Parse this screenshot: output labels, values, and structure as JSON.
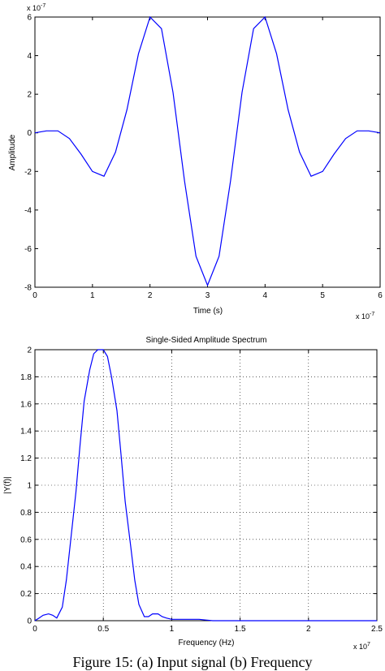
{
  "chart_data": [
    {
      "type": "line",
      "title": "",
      "xlabel": "Time (s)",
      "ylabel": "Amplitude",
      "x_exponent": "x 10",
      "x_exponent_power": "-7",
      "y_exponent": "x 10",
      "y_exponent_power": "-7",
      "xlim": [
        0,
        6
      ],
      "ylim": [
        -8,
        6
      ],
      "xticks": [
        "0",
        "1",
        "2",
        "3",
        "4",
        "5",
        "6"
      ],
      "yticks": [
        "-8",
        "-6",
        "-4",
        "-2",
        "0",
        "2",
        "4",
        "6"
      ],
      "grid": false,
      "line_color": "#0000ff",
      "series": [
        {
          "x": [
            0,
            0.2,
            0.4,
            0.6,
            0.8,
            1.0,
            1.2,
            1.4,
            1.6,
            1.8,
            2.0,
            2.2,
            2.4,
            2.6,
            2.8,
            3.0,
            3.2,
            3.4,
            3.6,
            3.8,
            4.0,
            4.2,
            4.4,
            4.6,
            4.8,
            5.0,
            5.2,
            5.4,
            5.6,
            5.8,
            6.0
          ],
          "values": [
            0,
            0.1,
            0.1,
            -0.3,
            -1.1,
            -2.0,
            -2.25,
            -1.0,
            1.2,
            4.1,
            6.0,
            5.4,
            2.1,
            -2.5,
            -6.4,
            -7.9,
            -6.4,
            -2.5,
            2.1,
            5.4,
            6.0,
            4.1,
            1.2,
            -1.0,
            -2.25,
            -2.0,
            -1.1,
            -0.3,
            0.1,
            0.1,
            0
          ]
        }
      ]
    },
    {
      "type": "line",
      "title": "Single-Sided Amplitude Spectrum",
      "xlabel": "Frequency (Hz)",
      "ylabel": "|Y(f)|",
      "x_exponent": "x 10",
      "x_exponent_power": "7",
      "xlim": [
        0,
        2.5
      ],
      "ylim": [
        0,
        2
      ],
      "xticks": [
        "0",
        "0.5",
        "1",
        "1.5",
        "2",
        "2.5"
      ],
      "yticks": [
        "0",
        "0.2",
        "0.4",
        "0.6",
        "0.8",
        "1",
        "1.2",
        "1.4",
        "1.6",
        "1.8",
        "2"
      ],
      "grid": true,
      "line_color": "#0000ff",
      "series": [
        {
          "x": [
            0,
            0.03,
            0.06,
            0.1,
            0.13,
            0.16,
            0.2,
            0.23,
            0.26,
            0.3,
            0.33,
            0.36,
            0.4,
            0.43,
            0.46,
            0.5,
            0.53,
            0.56,
            0.6,
            0.63,
            0.66,
            0.7,
            0.73,
            0.76,
            0.8,
            0.83,
            0.86,
            0.9,
            0.93,
            0.96,
            1.0,
            1.1,
            1.2,
            1.3,
            1.5,
            2.0,
            2.5
          ],
          "values": [
            0.0,
            0.02,
            0.04,
            0.05,
            0.04,
            0.02,
            0.1,
            0.3,
            0.58,
            0.95,
            1.3,
            1.62,
            1.85,
            1.97,
            2.0,
            2.0,
            1.95,
            1.8,
            1.55,
            1.22,
            0.88,
            0.55,
            0.3,
            0.12,
            0.03,
            0.03,
            0.05,
            0.05,
            0.03,
            0.02,
            0.01,
            0.01,
            0.01,
            0.0,
            0.0,
            0.0,
            0.0
          ]
        }
      ]
    }
  ],
  "caption": "Figure 15: (a) Input signal (b) Frequency"
}
